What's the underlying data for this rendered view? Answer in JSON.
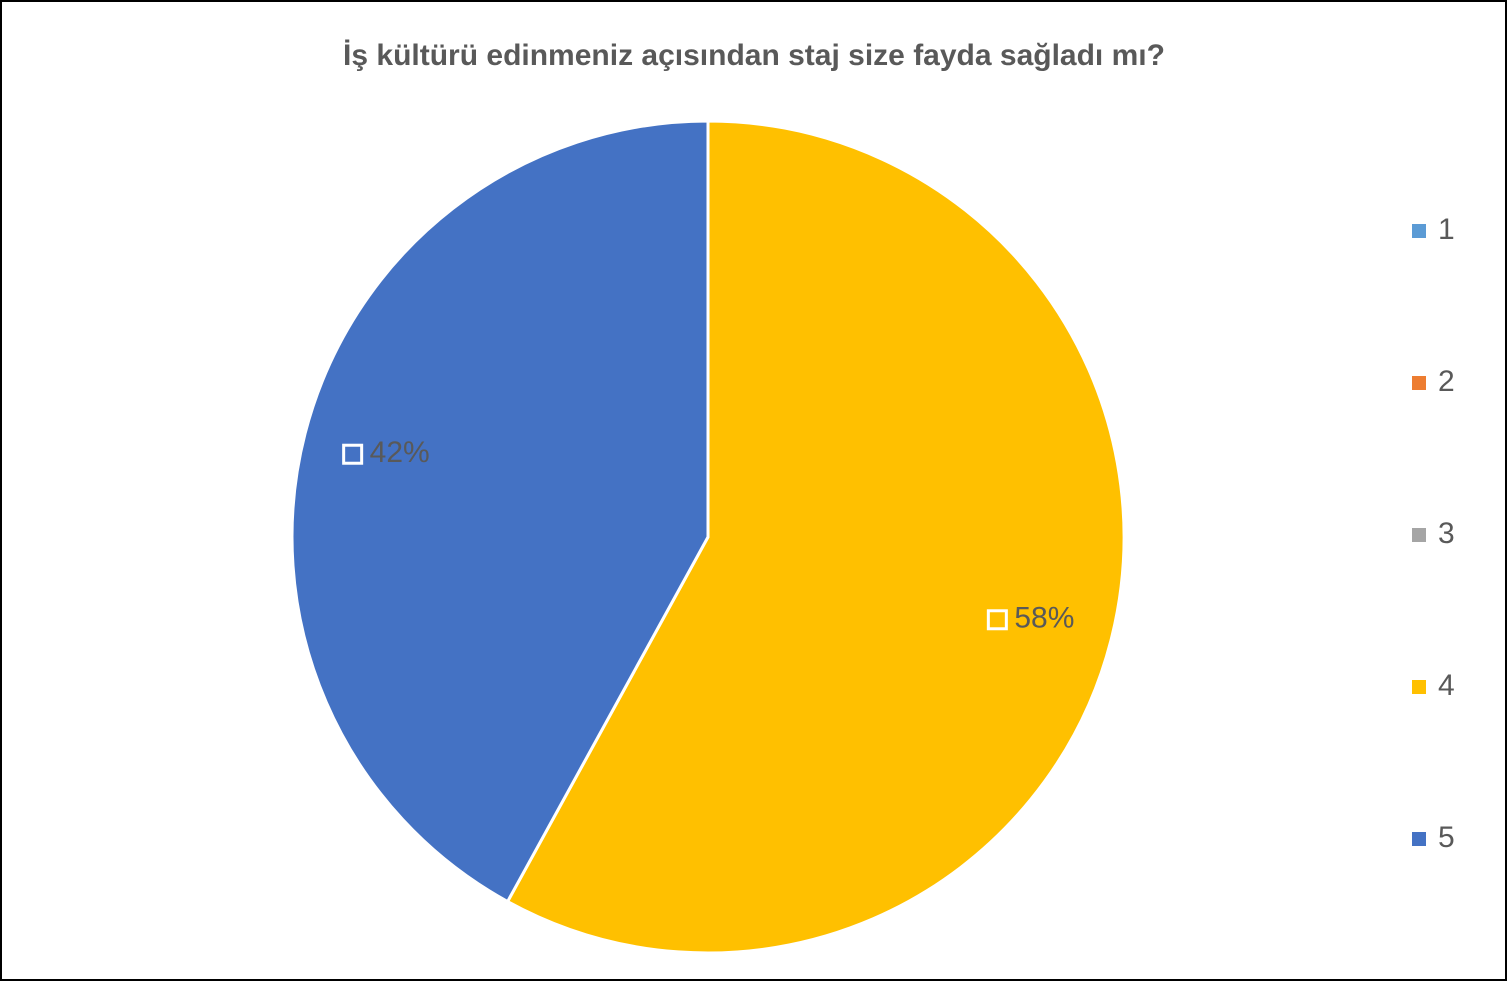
{
  "chart_data": {
    "type": "pie",
    "title": "İş kültürü edinmeniz açısından staj size fayda sağladı mı?",
    "categories": [
      "1",
      "2",
      "3",
      "4",
      "5"
    ],
    "values": [
      0,
      0,
      0,
      58,
      42
    ],
    "value_labels": [
      null,
      null,
      null,
      "58%",
      "42%"
    ],
    "colors": [
      "#5b9bd5",
      "#ed7d31",
      "#a5a5a5",
      "#ffc000",
      "#4472c4"
    ],
    "legend": "right"
  }
}
